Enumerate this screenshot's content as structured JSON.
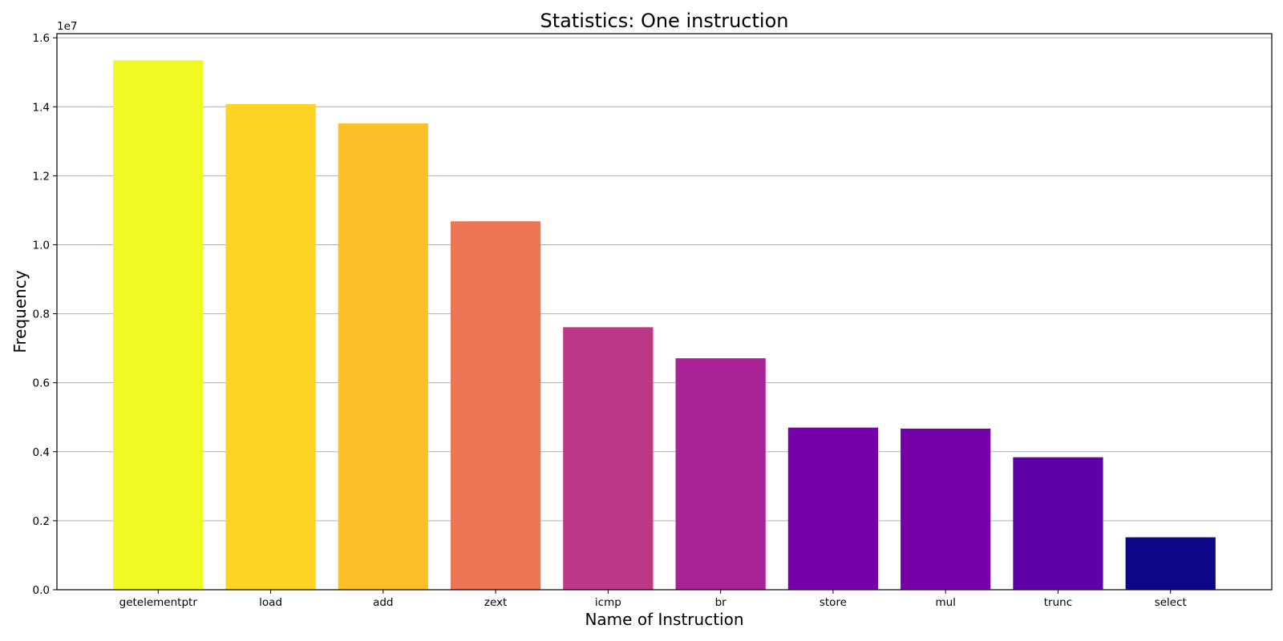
{
  "chart_data": {
    "type": "bar",
    "title": "Statistics: One instruction",
    "xlabel": "Name of Instruction",
    "ylabel": "Frequency",
    "y_offset_text": "1e7",
    "categories": [
      "getelementptr",
      "load",
      "add",
      "zext",
      "icmp",
      "br",
      "store",
      "mul",
      "trunc",
      "select"
    ],
    "values": [
      15350000,
      14080000,
      13520000,
      10680000,
      7610000,
      6710000,
      4700000,
      4670000,
      3840000,
      1520000
    ],
    "colors": [
      "#f0f921",
      "#fdd325",
      "#fdbf2b",
      "#ec7654",
      "#bd3786",
      "#a82296",
      "#7501a8",
      "#7501a8",
      "#5e01a6",
      "#0d0887"
    ],
    "yticks": [
      0,
      2000000,
      4000000,
      6000000,
      8000000,
      10000000,
      12000000,
      14000000,
      16000000
    ],
    "ytick_labels": [
      "0.0",
      "0.2",
      "0.4",
      "0.6",
      "0.8",
      "1.0",
      "1.2",
      "1.4",
      "1.6"
    ],
    "ylim": [
      0,
      16120000
    ],
    "grid": "y-axis",
    "grid_color": "#b0b0b0",
    "legend": "none"
  }
}
